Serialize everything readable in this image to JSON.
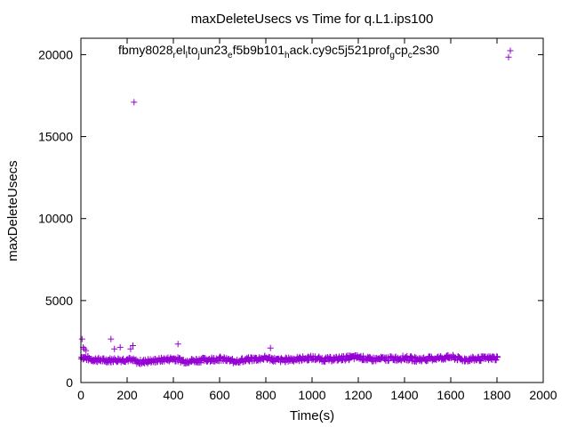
{
  "chart_data": {
    "type": "scatter",
    "title": "maxDeleteUsecs vs Time for q.L1.ips100",
    "xlabel": "Time(s)",
    "ylabel": "maxDeleteUsecs",
    "xlim": [
      0,
      2000
    ],
    "ylim": [
      0,
      21000
    ],
    "x_ticks": [
      "0",
      "200",
      "400",
      "600",
      "800",
      "1000",
      "1200",
      "1400",
      "1600",
      "1800",
      "2000"
    ],
    "y_ticks": [
      "0",
      "5000",
      "10000",
      "15000",
      "20000"
    ],
    "grid": false,
    "legend_position": "top",
    "color": "#9400d3",
    "marker": "plus",
    "legend_segments": [
      {
        "text": "fbmy8028",
        "sub": false
      },
      {
        "text": "r",
        "sub": true
      },
      {
        "text": "el",
        "sub": false
      },
      {
        "text": "l",
        "sub": true
      },
      {
        "text": "to",
        "sub": false
      },
      {
        "text": "j",
        "sub": true
      },
      {
        "text": "un23",
        "sub": false
      },
      {
        "text": "e",
        "sub": true
      },
      {
        "text": "f5b9b101",
        "sub": false
      },
      {
        "text": "h",
        "sub": true
      },
      {
        "text": "ack.cy9c5j521prof",
        "sub": false
      },
      {
        "text": "g",
        "sub": true
      },
      {
        "text": "cp",
        "sub": false
      },
      {
        "text": "c",
        "sub": true
      },
      {
        "text": "2s30",
        "sub": false
      }
    ],
    "outliers": [
      {
        "x": 5,
        "y": 2650
      },
      {
        "x": 10,
        "y": 2150
      },
      {
        "x": 15,
        "y": 2050
      },
      {
        "x": 22,
        "y": 1950
      },
      {
        "x": 130,
        "y": 2650
      },
      {
        "x": 145,
        "y": 2050
      },
      {
        "x": 170,
        "y": 2150
      },
      {
        "x": 215,
        "y": 2050
      },
      {
        "x": 225,
        "y": 2250
      },
      {
        "x": 230,
        "y": 17100
      },
      {
        "x": 420,
        "y": 2350
      },
      {
        "x": 820,
        "y": 2100
      },
      {
        "x": 1850,
        "y": 19850
      }
    ],
    "dense_band": {
      "x_range": [
        0,
        1800
      ],
      "step": 5,
      "centerline": [
        {
          "x": 0,
          "y": 1550
        },
        {
          "x": 50,
          "y": 1400
        },
        {
          "x": 100,
          "y": 1350
        },
        {
          "x": 200,
          "y": 1400
        },
        {
          "x": 250,
          "y": 1250
        },
        {
          "x": 400,
          "y": 1450
        },
        {
          "x": 450,
          "y": 1300
        },
        {
          "x": 600,
          "y": 1450
        },
        {
          "x": 650,
          "y": 1300
        },
        {
          "x": 800,
          "y": 1500
        },
        {
          "x": 850,
          "y": 1350
        },
        {
          "x": 1000,
          "y": 1500
        },
        {
          "x": 1050,
          "y": 1400
        },
        {
          "x": 1200,
          "y": 1550
        },
        {
          "x": 1250,
          "y": 1400
        },
        {
          "x": 1400,
          "y": 1500
        },
        {
          "x": 1450,
          "y": 1400
        },
        {
          "x": 1600,
          "y": 1550
        },
        {
          "x": 1650,
          "y": 1400
        },
        {
          "x": 1800,
          "y": 1500
        }
      ],
      "spread": 280
    }
  }
}
